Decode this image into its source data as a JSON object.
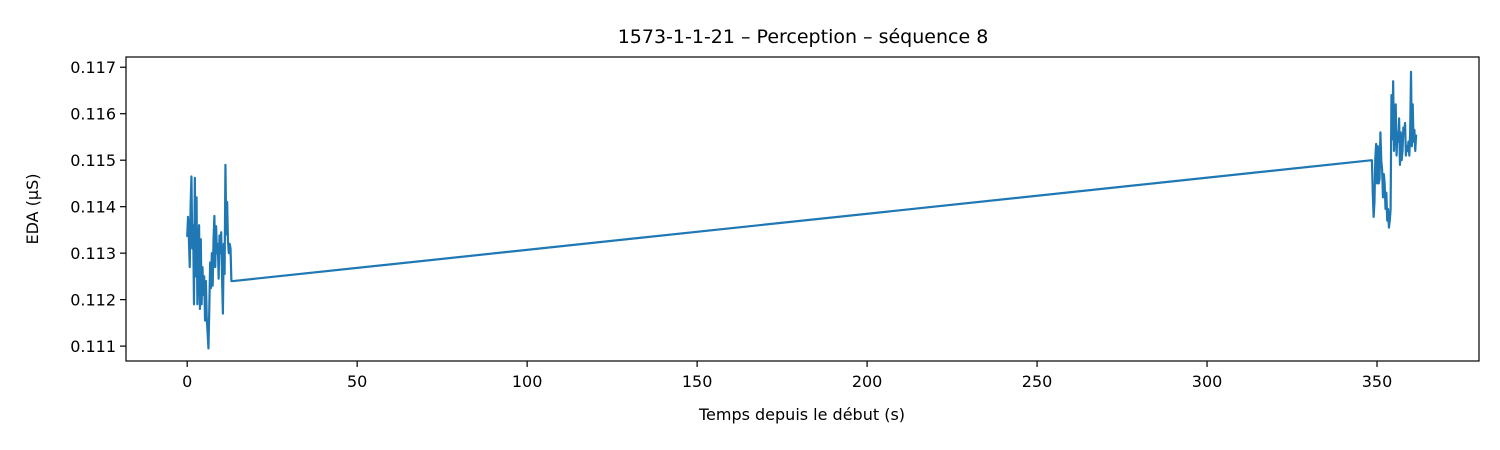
{
  "chart_data": {
    "type": "line",
    "title": "1573-1-1-21 – Perception – séquence 8",
    "xlabel": "Temps depuis le début (s)",
    "ylabel": "EDA (µS)",
    "xlim": [
      -18,
      380
    ],
    "ylim": [
      0.11068,
      0.11722
    ],
    "xticks": [
      0,
      50,
      100,
      150,
      200,
      250,
      300,
      350
    ],
    "xtick_labels": [
      "0",
      "50",
      "100",
      "150",
      "200",
      "250",
      "300",
      "350"
    ],
    "yticks": [
      0.111,
      0.112,
      0.113,
      0.114,
      0.115,
      0.116,
      0.117
    ],
    "ytick_labels": [
      "0.111",
      "0.112",
      "0.113",
      "0.114",
      "0.115",
      "0.116",
      "0.117"
    ],
    "grid": false,
    "legend": "none",
    "series": [
      {
        "color": "#1f77b4",
        "x": [
          0.0,
          0.25,
          0.5,
          0.75,
          1.0,
          1.25,
          1.5,
          1.75,
          2.0,
          2.25,
          2.5,
          2.75,
          3.0,
          3.25,
          3.5,
          3.75,
          4.0,
          4.25,
          4.5,
          4.75,
          5.0,
          5.25,
          5.5,
          5.75,
          6.0,
          6.25,
          6.5,
          6.75,
          7.0,
          7.25,
          7.5,
          7.75,
          8.0,
          8.25,
          8.5,
          8.75,
          9.0,
          9.25,
          9.5,
          9.75,
          10.0,
          10.25,
          10.5,
          10.75,
          11.0,
          11.25,
          11.5,
          11.75,
          12.0,
          12.25,
          12.5,
          12.75,
          13.0,
          13.5,
          348.5,
          348.75,
          349.0,
          349.25,
          349.5,
          349.75,
          350.0,
          350.25,
          350.5,
          350.75,
          351.0,
          351.25,
          351.5,
          351.75,
          352.0,
          352.25,
          352.5,
          352.75,
          353.0,
          353.25,
          353.5,
          353.75,
          354.0,
          354.25,
          354.5,
          354.75,
          355.0,
          355.25,
          355.5,
          355.75,
          356.0,
          356.25,
          356.5,
          356.75,
          357.0,
          357.25,
          357.5,
          357.75,
          358.0,
          358.25,
          358.5,
          358.75,
          359.0,
          359.25,
          359.5,
          359.75,
          360.0,
          360.25,
          360.5,
          360.75,
          361.0,
          361.25,
          361.5
        ],
        "y": [
          0.11335,
          0.11378,
          0.1133,
          0.1127,
          0.114,
          0.11465,
          0.1131,
          0.1136,
          0.1119,
          0.11462,
          0.1125,
          0.1142,
          0.1119,
          0.1128,
          0.1136,
          0.1118,
          0.1133,
          0.1119,
          0.1127,
          0.1121,
          0.1125,
          0.11155,
          0.1124,
          0.1116,
          0.1113,
          0.11095,
          0.1118,
          0.1128,
          0.11225,
          0.113,
          0.1123,
          0.1133,
          0.1138,
          0.1127,
          0.11358,
          0.113,
          0.1132,
          0.11245,
          0.11338,
          0.113,
          0.11345,
          0.1125,
          0.1117,
          0.1132,
          0.11255,
          0.1149,
          0.1134,
          0.1141,
          0.11325,
          0.113,
          0.1132,
          0.1131,
          0.1124,
          0.1124,
          0.115,
          0.1143,
          0.11378,
          0.1141,
          0.11505,
          0.11535,
          0.1145,
          0.1153,
          0.1145,
          0.1146,
          0.1156,
          0.115,
          0.1148,
          0.1142,
          0.1147,
          0.1145,
          0.11395,
          0.1143,
          0.1137,
          0.11395,
          0.11355,
          0.1137,
          0.11395,
          0.1164,
          0.11545,
          0.1167,
          0.1152,
          0.1158,
          0.1162,
          0.1151,
          0.1156,
          0.1154,
          0.1159,
          0.1149,
          0.1156,
          0.115,
          0.1152,
          0.1157,
          0.1156,
          0.1158,
          0.1151,
          0.1153,
          0.1152,
          0.1154,
          0.1151,
          0.1156,
          0.1169,
          0.1153,
          0.1162,
          0.1154,
          0.11565,
          0.1152,
          0.11555
        ]
      }
    ]
  }
}
